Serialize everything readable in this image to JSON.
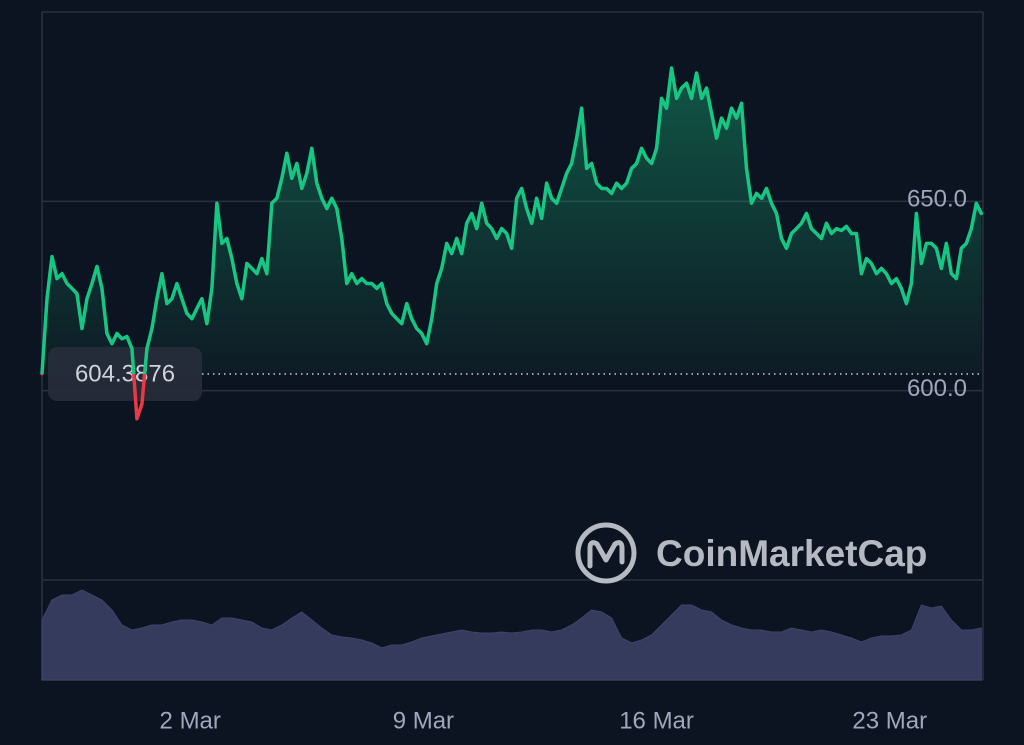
{
  "chart_data": {
    "type": "line",
    "color": "#16c784",
    "down_color": "#ea3943",
    "baseline": 604.3876,
    "watermark": "CoinMarketCap",
    "xlim": [
      -2.45,
      25.8
    ],
    "xticks": [
      {
        "value": 2,
        "label": "2 Mar"
      },
      {
        "value": 9,
        "label": "9 Mar"
      },
      {
        "value": 16,
        "label": "16 Mar"
      },
      {
        "value": 23,
        "label": "23 Mar"
      }
    ],
    "ylim": [
      550,
      700
    ],
    "yticks": [
      {
        "value": 600,
        "label": "600.0"
      },
      {
        "value": 650,
        "label": "650.0"
      }
    ],
    "grid": true,
    "x": [
      -2.45,
      -2.3,
      -2.15,
      -2,
      -1.85,
      -1.7,
      -1.55,
      -1.4,
      -1.25,
      -1.1,
      -0.95,
      -0.8,
      -0.65,
      -0.5,
      -0.35,
      -0.2,
      -0.05,
      0.1,
      0.25,
      0.4,
      0.55,
      0.7,
      0.85,
      1,
      1.15,
      1.3,
      1.45,
      1.6,
      1.75,
      1.9,
      2.05,
      2.2,
      2.35,
      2.5,
      2.65,
      2.8,
      2.95,
      3.1,
      3.25,
      3.4,
      3.55,
      3.7,
      3.85,
      4,
      4.15,
      4.3,
      4.45,
      4.6,
      4.75,
      4.9,
      5.05,
      5.2,
      5.35,
      5.5,
      5.65,
      5.8,
      5.95,
      6.1,
      6.25,
      6.4,
      6.55,
      6.7,
      6.85,
      7,
      7.15,
      7.3,
      7.45,
      7.6,
      7.75,
      7.9,
      8.05,
      8.2,
      8.35,
      8.5,
      8.65,
      8.8,
      8.95,
      9.1,
      9.25,
      9.4,
      9.55,
      9.7,
      9.85,
      10,
      10.15,
      10.3,
      10.45,
      10.6,
      10.75,
      10.9,
      11.05,
      11.2,
      11.35,
      11.5,
      11.65,
      11.8,
      11.95,
      12.1,
      12.25,
      12.4,
      12.55,
      12.7,
      12.85,
      13,
      13.15,
      13.3,
      13.45,
      13.6,
      13.75,
      13.9,
      14.05,
      14.2,
      14.35,
      14.5,
      14.65,
      14.8,
      14.95,
      15.1,
      15.25,
      15.4,
      15.55,
      15.7,
      15.85,
      16,
      16.15,
      16.3,
      16.45,
      16.6,
      16.75,
      16.9,
      17.05,
      17.2,
      17.35,
      17.5,
      17.65,
      17.8,
      17.95,
      18.1,
      18.25,
      18.4,
      18.55,
      18.7,
      18.85,
      19,
      19.15,
      19.3,
      19.45,
      19.6,
      19.75,
      19.9,
      20.05,
      20.2,
      20.35,
      20.5,
      20.65,
      20.8,
      20.95,
      21.1,
      21.25,
      21.4,
      21.55,
      21.7,
      21.85,
      22,
      22.15,
      22.3,
      22.45,
      22.6,
      22.75,
      22.9,
      23.05,
      23.2,
      23.35,
      23.5,
      23.65,
      23.8,
      23.95,
      24.1,
      24.25,
      24.4,
      24.55,
      24.7,
      24.85,
      25,
      25.15,
      25.3,
      25.45,
      25.6,
      25.75
    ],
    "values": [
      604.5,
      624.3,
      635.4,
      629.6,
      630.9,
      628.3,
      627.0,
      625.6,
      616.4,
      624.3,
      628.3,
      632.8,
      627.0,
      615.1,
      612.4,
      615.1,
      613.7,
      614.3,
      611.1,
      592.6,
      596.5,
      611.1,
      616.4,
      624.3,
      630.9,
      623.0,
      624.3,
      628.3,
      624.3,
      620.4,
      619.0,
      621.7,
      624.3,
      617.7,
      627.0,
      649.5,
      638.9,
      640.2,
      634.9,
      628.3,
      624.3,
      633.6,
      632.3,
      630.9,
      634.9,
      630.9,
      649.5,
      650.8,
      656.1,
      662.7,
      656.1,
      660.0,
      653.4,
      657.4,
      664.0,
      654.8,
      650.8,
      648.1,
      650.8,
      648.1,
      640.2,
      628.3,
      630.9,
      628.3,
      629.6,
      628.3,
      628.3,
      627.0,
      628.3,
      623.0,
      620.4,
      619.0,
      617.7,
      623.0,
      619.0,
      616.4,
      615.1,
      612.4,
      619.0,
      628.3,
      632.3,
      638.9,
      636.2,
      640.2,
      636.2,
      644.2,
      646.8,
      642.8,
      649.5,
      644.2,
      642.8,
      640.2,
      642.8,
      641.5,
      637.6,
      650.8,
      653.4,
      648.1,
      644.2,
      650.8,
      645.5,
      654.8,
      650.8,
      649.5,
      653.4,
      657.4,
      660.0,
      666.7,
      674.6,
      658.7,
      660.0,
      654.8,
      653.4,
      653.4,
      652.1,
      654.8,
      653.4,
      654.8,
      658.7,
      660.0,
      664.0,
      661.4,
      660.0,
      664.0,
      677.2,
      674.6,
      685.2,
      677.2,
      679.9,
      681.2,
      677.2,
      683.9,
      677.2,
      679.9,
      673.3,
      666.7,
      672.0,
      669.3,
      674.6,
      672.0,
      675.9,
      658.7,
      649.5,
      652.1,
      650.8,
      653.4,
      649.5,
      646.8,
      640.2,
      637.6,
      641.5,
      642.8,
      644.2,
      646.8,
      642.8,
      641.5,
      640.2,
      644.2,
      641.5,
      642.8,
      642.3,
      643.4,
      641.5,
      641.5,
      630.9,
      634.9,
      633.6,
      630.9,
      632.3,
      630.9,
      628.3,
      629.6,
      627.0,
      623.0,
      628.3,
      646.8,
      633.6,
      638.9,
      638.9,
      637.6,
      632.3,
      638.9,
      630.9,
      629.6,
      637.6,
      638.9,
      642.8,
      649.5,
      646.8
    ],
    "y2lim": [
      0,
      100
    ],
    "volume": {
      "axis": "y2",
      "color": "#343b5d",
      "x": [
        -2.45,
        -2.15,
        -1.85,
        -1.55,
        -1.25,
        -0.95,
        -0.65,
        -0.35,
        -0.05,
        0.25,
        0.55,
        0.85,
        1.15,
        1.45,
        1.75,
        2.05,
        2.35,
        2.65,
        2.95,
        3.25,
        3.55,
        3.85,
        4.15,
        4.45,
        4.75,
        5.05,
        5.35,
        5.65,
        5.95,
        6.25,
        6.55,
        6.85,
        7.15,
        7.45,
        7.75,
        8.05,
        8.35,
        8.65,
        8.95,
        9.25,
        9.55,
        9.85,
        10.15,
        10.45,
        10.75,
        11.05,
        11.35,
        11.65,
        11.95,
        12.25,
        12.55,
        12.85,
        13.15,
        13.45,
        13.75,
        14.05,
        14.35,
        14.65,
        14.95,
        15.25,
        15.55,
        15.85,
        16.15,
        16.45,
        16.75,
        17.05,
        17.35,
        17.65,
        17.95,
        18.25,
        18.55,
        18.85,
        19.15,
        19.45,
        19.75,
        20.05,
        20.35,
        20.65,
        20.95,
        21.25,
        21.55,
        21.85,
        22.15,
        22.45,
        22.75,
        23.05,
        23.35,
        23.65,
        23.95,
        24.25,
        24.55,
        24.85,
        25.15,
        25.45,
        25.75
      ],
      "values": [
        60,
        80,
        85,
        85,
        90,
        85,
        80,
        70,
        55,
        50,
        52,
        55,
        55,
        58,
        60,
        60,
        58,
        55,
        62,
        62,
        60,
        58,
        52,
        50,
        55,
        62,
        68,
        60,
        52,
        45,
        43,
        42,
        40,
        37,
        32,
        35,
        35,
        38,
        42,
        44,
        46,
        48,
        50,
        48,
        47,
        47,
        48,
        47,
        48,
        50,
        50,
        48,
        50,
        55,
        62,
        70,
        68,
        62,
        42,
        37,
        40,
        45,
        55,
        65,
        75,
        75,
        70,
        68,
        60,
        55,
        52,
        50,
        50,
        48,
        48,
        52,
        50,
        48,
        50,
        48,
        45,
        42,
        38,
        42,
        44,
        44,
        45,
        50,
        75,
        72,
        74,
        60,
        50,
        50,
        52
      ]
    }
  }
}
